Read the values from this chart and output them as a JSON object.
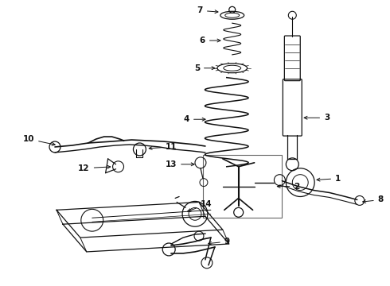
{
  "bg_color": "#ffffff",
  "line_color": "#111111",
  "label_color": "#000000",
  "fig_width": 4.9,
  "fig_height": 3.6,
  "dpi": 100
}
